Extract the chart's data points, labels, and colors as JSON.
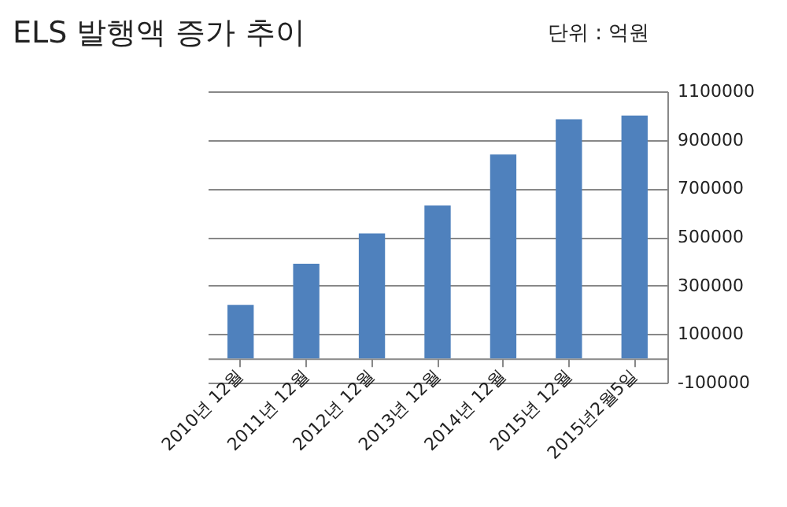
{
  "chart_data": {
    "type": "bar",
    "title": "ELS 발행액 증가 추이",
    "annotations": [
      "단위 : 억원"
    ],
    "categories": [
      "2010년 12월",
      "2011년 12월",
      "2012년 12월",
      "2013년 12월",
      "2014년 12월",
      "2015년 12월",
      "2015년2월5일"
    ],
    "values": [
      220000,
      390000,
      515000,
      630000,
      840000,
      985000,
      1000000
    ],
    "color": "#4f81bd",
    "ylim": [
      -100000,
      1100000
    ],
    "yticks": [
      -100000,
      100000,
      300000,
      500000,
      700000,
      900000,
      1100000
    ],
    "grid": "y"
  }
}
